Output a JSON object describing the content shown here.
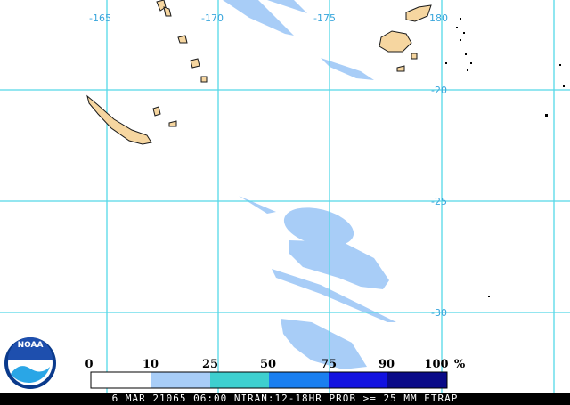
{
  "map": {
    "longitude_labels": [
      "-165",
      "-170",
      "-175",
      "180"
    ],
    "latitude_labels": [
      "-20",
      "-25",
      "-30"
    ]
  },
  "legend": {
    "ticks": [
      "0",
      "10",
      "25",
      "50",
      "75",
      "90",
      "100",
      "%"
    ],
    "colors": [
      "#ffffff",
      "#a8cdf7",
      "#3ecfcf",
      "#1a7ff0",
      "#1212e0",
      "#0a0a88"
    ]
  },
  "logo": {
    "text": "NOAA"
  },
  "footer": {
    "caption": "6 MAR 21065 06:00 NIRAN:12-18HR PROB >= 25 MM ETRAP"
  }
}
